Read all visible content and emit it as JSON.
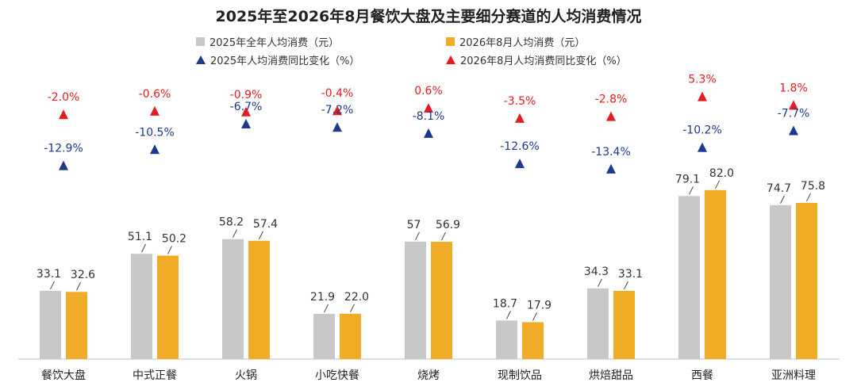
{
  "chart_data": {
    "type": "bar",
    "title": "2025年至2026年8月餐饮大盘及主要细分赛道的人均消费情况",
    "categories": [
      "餐饮大盘",
      "中式正餐",
      "火锅",
      "小吃快餐",
      "烧烤",
      "现制饮品",
      "烘焙甜品",
      "西餐",
      "亚洲料理"
    ],
    "series": [
      {
        "name": "2025年全年人均消费（元）",
        "kind": "bar",
        "color": "#c8c8c8",
        "values": [
          33.1,
          51.1,
          58.2,
          21.9,
          57,
          18.7,
          34.3,
          79.1,
          74.7
        ],
        "labels": [
          "33.1",
          "51.1",
          "58.2",
          "21.9",
          "57",
          "18.7",
          "34.3",
          "79.1",
          "74.7"
        ]
      },
      {
        "name": "2026年8月人均消费（元）",
        "kind": "bar",
        "color": "#f0ac26",
        "values": [
          32.6,
          50.2,
          57.4,
          22.0,
          56.9,
          17.9,
          33.1,
          82.0,
          75.8
        ],
        "labels": [
          "32.6",
          "50.2",
          "57.4",
          "22.0",
          "56.9",
          "17.9",
          "33.1",
          "82.0",
          "75.8"
        ]
      },
      {
        "name": "2025年人均消费同比变化（%）",
        "kind": "marker",
        "color": "#1c3a8c",
        "values": [
          -12.9,
          -10.5,
          -6.7,
          -7.2,
          -8.1,
          -12.6,
          -13.4,
          -10.2,
          -7.7
        ],
        "labels": [
          "-12.9%",
          "-10.5%",
          "-6.7%",
          "-7.2%",
          "-8.1%",
          "-12.6%",
          "-13.4%",
          "-10.2%",
          "-7.7%"
        ]
      },
      {
        "name": "2026年8月人均消费同比变化（%）",
        "kind": "marker",
        "color": "#e41c23",
        "values": [
          -2.0,
          -0.6,
          -0.9,
          -0.4,
          0.6,
          -3.5,
          -2.8,
          5.3,
          1.8
        ],
        "labels": [
          "-2.0%",
          "-0.6%",
          "-0.9%",
          "-0.4%",
          "0.6%",
          "-3.5%",
          "-2.8%",
          "5.3%",
          "1.8%"
        ]
      }
    ],
    "ylim": [
      0,
      100
    ],
    "legend": "top-center",
    "grid": false
  }
}
